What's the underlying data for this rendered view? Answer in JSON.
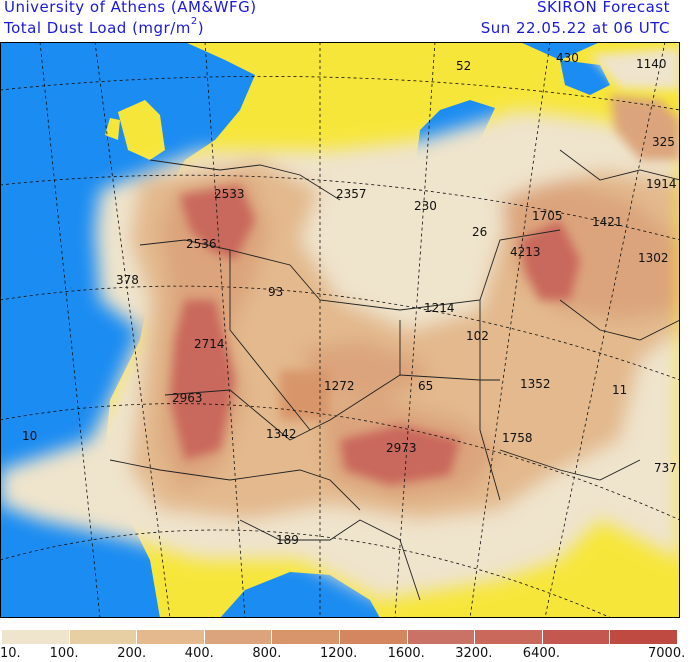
{
  "header": {
    "line1_left": "University of Athens (AM&WFG)",
    "line2_left": "Total Dust Load (mgr/m",
    "line2_left_sup": "2",
    "line2_left_end": ")",
    "line1_right": "SKIRON Forecast",
    "line2_right": "Sun 22.05.22 at 06 UTC"
  },
  "colors": {
    "sea": "#1b8cf2",
    "land_clear": "#f7e63a",
    "title_text": "#1a1adb"
  },
  "legend": {
    "bins": [
      {
        "color": "#efe4cc"
      },
      {
        "color": "#e7cfa3"
      },
      {
        "color": "#e3b98d"
      },
      {
        "color": "#dca47c"
      },
      {
        "color": "#d8956b"
      },
      {
        "color": "#d3865f"
      },
      {
        "color": "#cb7266"
      },
      {
        "color": "#c9685b"
      },
      {
        "color": "#c45850"
      },
      {
        "color": "#bf4a42"
      }
    ],
    "labels": [
      "10.",
      "100.",
      "200.",
      "400.",
      "800.",
      "1200.",
      "1600.",
      "3200.",
      "6400.",
      "7000."
    ]
  },
  "map_labels": [
    "52",
    "430",
    "1140",
    "325",
    "1914",
    "2533",
    "2536",
    "2357",
    "230",
    "1705",
    "1421",
    "26",
    "4213",
    "1302",
    "378",
    "93",
    "1214",
    "102",
    "2714",
    "1272",
    "65",
    "1352",
    "2963",
    "11",
    "10",
    "1342",
    "2973",
    "1758",
    "737",
    "189"
  ]
}
